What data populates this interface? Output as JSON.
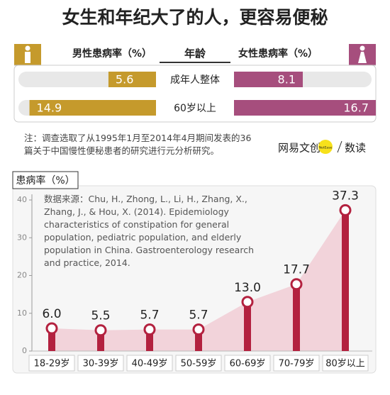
{
  "title": "女生和年纪大了的人，更容易便秘",
  "note": "注：调查选取了从1995年1月至2014年4月期间发表的36篇关于中国慢性便秘患者的研究进行元分析研究。",
  "logo": {
    "brand": "网易文创",
    "badge": "NetEase",
    "section": "数读"
  },
  "chart_data": [
    {
      "type": "butterfly",
      "headers": {
        "left": "男性患病率（%）",
        "center": "年龄",
        "right": "女性患病率（%）"
      },
      "categories": [
        "成年人整体",
        "60岁以上"
      ],
      "series": [
        {
          "name": "男性",
          "color": "#c59a2c",
          "values": [
            5.6,
            14.9
          ]
        },
        {
          "name": "女性",
          "color": "#a64e7d",
          "values": [
            8.1,
            16.7
          ]
        }
      ]
    },
    {
      "type": "lollipop",
      "ylabel": "患病率（%）",
      "annotation": "数据来源：Chu, H., Zhong, L., Li, H., Zhang, X., Zhang, J., & Hou, X. (2014). Epidemiology characteristics of constipation for general population, pediatric population, and elderly population in China. Gastroenterology research and practice, 2014.",
      "categories": [
        "18-29岁",
        "30-39岁",
        "40-49岁",
        "50-59岁",
        "60-69岁",
        "70-79岁",
        "80岁以上"
      ],
      "values": [
        6.0,
        5.5,
        5.7,
        5.7,
        13.0,
        17.7,
        37.3
      ],
      "value_labels": [
        "6.0",
        "5.5",
        "5.7",
        "5.7",
        "13.0",
        "17.7",
        "37.3"
      ],
      "color": "#b3213f",
      "area_color": "#f2d3da",
      "ylim": [
        0,
        40
      ],
      "yticks": [
        0,
        10,
        20,
        30,
        40
      ]
    }
  ]
}
